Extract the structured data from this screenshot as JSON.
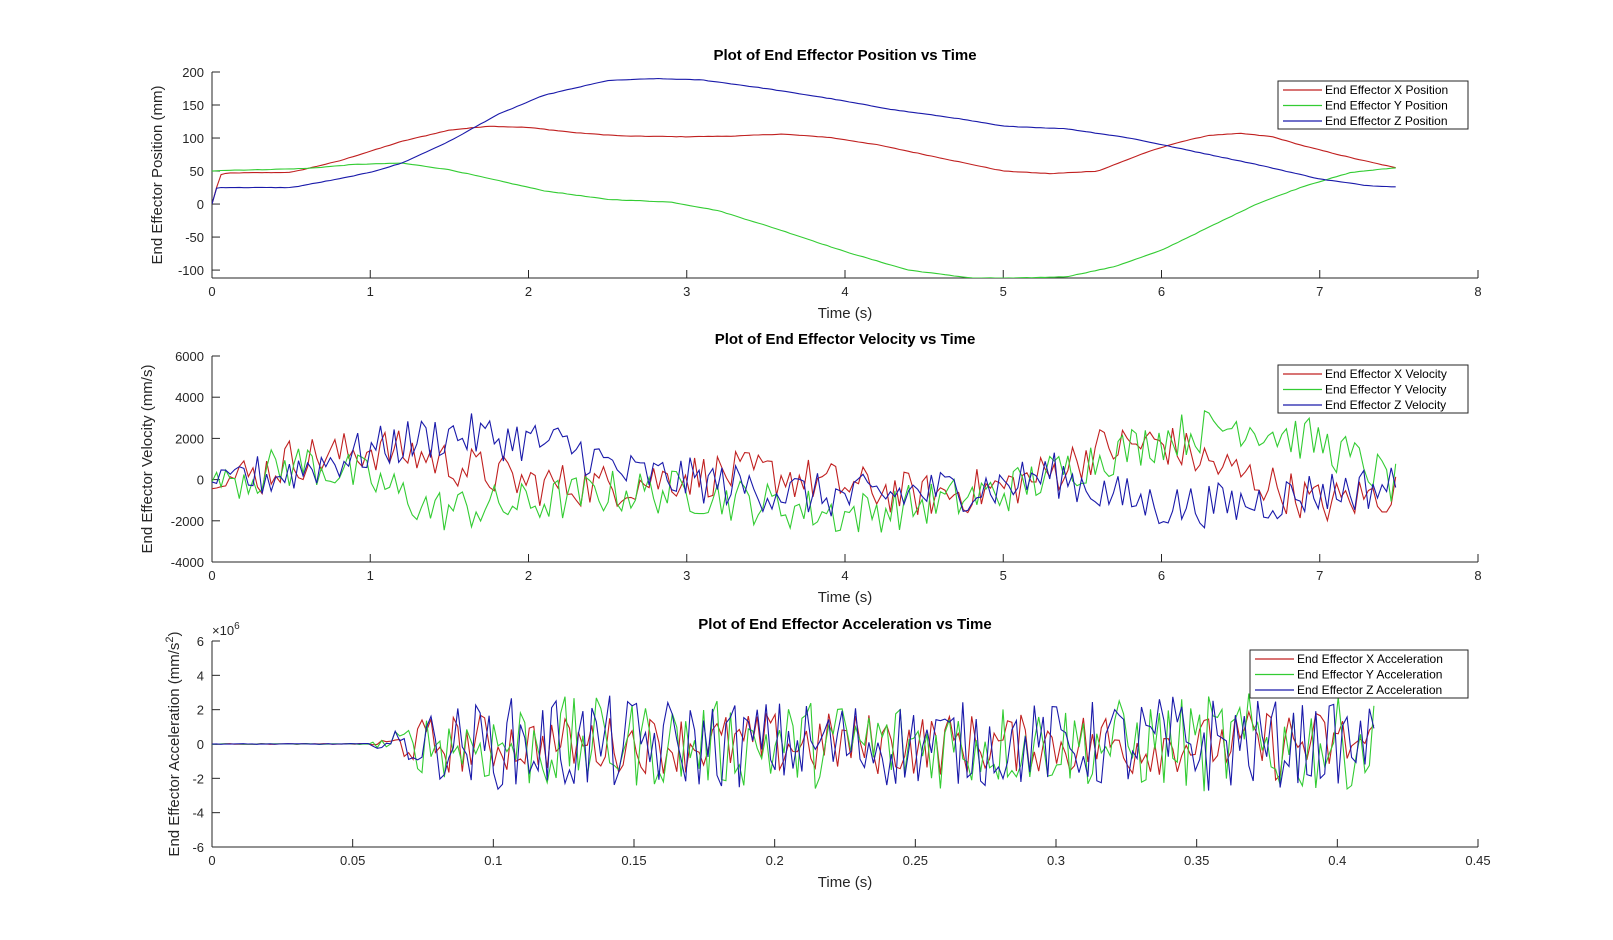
{
  "figure": {
    "background": "#ffffff"
  },
  "chart_data": [
    {
      "type": "line",
      "title": "Plot of End Effector Position vs Time",
      "xlabel": "Time (s)",
      "ylabel": "End Effector Position (mm)",
      "xlim": [
        0,
        8
      ],
      "ylim": [
        -112,
        200
      ],
      "xticks": [
        0,
        1,
        2,
        3,
        4,
        5,
        6,
        7,
        8
      ],
      "yticks": [
        -100,
        -50,
        0,
        50,
        100,
        150,
        200
      ],
      "grid": false,
      "legend_position": "top-right",
      "series": [
        {
          "name": "End Effector X Position",
          "color": "#c02020",
          "x": [
            0,
            0.05,
            0.1,
            0.5,
            0.8,
            1.0,
            1.2,
            1.5,
            1.75,
            2.0,
            2.3,
            2.6,
            3.0,
            3.3,
            3.6,
            3.9,
            4.2,
            4.5,
            4.8,
            5.0,
            5.3,
            5.6,
            5.9,
            6.1,
            6.3,
            6.5,
            6.7,
            6.9,
            7.2,
            7.48
          ],
          "y": [
            0,
            44,
            47,
            48,
            65,
            80,
            95,
            112,
            118,
            116,
            108,
            103,
            102,
            103,
            106,
            101,
            90,
            75,
            60,
            50,
            46,
            50,
            78,
            93,
            104,
            107,
            102,
            88,
            70,
            55
          ]
        },
        {
          "name": "End Effector Y Position",
          "color": "#33cc33",
          "x": [
            0,
            0.05,
            0.3,
            0.6,
            0.9,
            1.2,
            1.5,
            1.8,
            2.1,
            2.5,
            2.9,
            3.2,
            3.6,
            4.0,
            4.4,
            4.8,
            5.1,
            5.4,
            5.7,
            6.0,
            6.3,
            6.6,
            6.9,
            7.2,
            7.48
          ],
          "y": [
            50,
            51,
            52,
            54,
            60,
            62,
            52,
            36,
            20,
            7,
            3,
            -10,
            -40,
            -72,
            -100,
            -112,
            -112,
            -110,
            -95,
            -70,
            -35,
            0,
            27,
            48,
            55
          ]
        },
        {
          "name": "End Effector Z Position",
          "color": "#1a1aaa",
          "x": [
            0,
            0.03,
            0.5,
            0.8,
            1.0,
            1.2,
            1.5,
            1.8,
            2.1,
            2.5,
            2.8,
            3.1,
            3.5,
            3.9,
            4.3,
            4.7,
            5.0,
            5.4,
            5.8,
            6.2,
            6.6,
            7.0,
            7.3,
            7.48
          ],
          "y": [
            0,
            25,
            25,
            38,
            48,
            62,
            95,
            135,
            165,
            187,
            190,
            188,
            175,
            160,
            143,
            130,
            118,
            114,
            100,
            80,
            60,
            38,
            28,
            26
          ]
        }
      ]
    },
    {
      "type": "line",
      "title": "Plot of End Effector Velocity vs Time",
      "xlabel": "Time (s)",
      "ylabel": "End Effector Velocity (mm/s)",
      "xlim": [
        0,
        8
      ],
      "ylim": [
        -4000,
        6000
      ],
      "xticks": [
        0,
        1,
        2,
        3,
        4,
        5,
        6,
        7,
        8
      ],
      "yticks": [
        -4000,
        -2000,
        0,
        2000,
        4000,
        6000
      ],
      "grid": false,
      "legend_position": "top-right",
      "series": [
        {
          "name": "End Effector X Velocity",
          "color": "#c02020",
          "x": [
            0,
            0.3,
            0.5,
            0.8,
            1.0,
            1.3,
            1.6,
            2.0,
            2.5,
            3.0,
            3.5,
            4.0,
            4.5,
            5.0,
            5.3,
            5.6,
            6.0,
            6.3,
            6.6,
            7.0,
            7.48
          ],
          "y": [
            0,
            200,
            1000,
            1200,
            1500,
            1200,
            600,
            -200,
            -300,
            200,
            300,
            -300,
            -800,
            -400,
            300,
            1500,
            1800,
            800,
            0,
            -1200,
            -600
          ]
        },
        {
          "name": "End Effector Y Velocity",
          "color": "#33cc33",
          "x": [
            0,
            0.3,
            0.6,
            1.0,
            1.4,
            2.0,
            2.5,
            3.0,
            3.5,
            4.0,
            4.5,
            5.0,
            5.5,
            6.0,
            6.5,
            7.0,
            7.3,
            7.48
          ],
          "y": [
            0,
            300,
            800,
            0,
            -1500,
            -1200,
            -600,
            -600,
            -1200,
            -1700,
            -1200,
            -600,
            800,
            2000,
            2700,
            1800,
            600,
            -300
          ]
        },
        {
          "name": "End Effector Z Velocity",
          "color": "#1a1aaa",
          "x": [
            0,
            0.4,
            0.8,
            1.2,
            1.5,
            2.0,
            2.3,
            2.6,
            3.0,
            3.5,
            4.0,
            4.5,
            5.0,
            5.3,
            5.7,
            6.0,
            6.5,
            7.0,
            7.48
          ],
          "y": [
            0,
            200,
            1000,
            1800,
            2200,
            1900,
            1500,
            300,
            0,
            -500,
            -900,
            -600,
            -300,
            300,
            -800,
            -1300,
            -1200,
            -600,
            -300
          ]
        }
      ]
    },
    {
      "type": "line",
      "title": "Plot of End Effector Acceleration vs Time",
      "xlabel": "Time (s)",
      "ylabel": "End Effector Acceleration (mm/s",
      "ylabel_superscript": "2",
      "ylabel_suffix": ")",
      "exponent_label": "×10",
      "exponent_power": "6",
      "xlim": [
        0,
        0.45
      ],
      "ylim": [
        -6,
        6
      ],
      "xticks": [
        0,
        0.05,
        0.1,
        0.15,
        0.2,
        0.25,
        0.3,
        0.35,
        0.4,
        0.45
      ],
      "yticks": [
        -6,
        -4,
        -2,
        0,
        2,
        4,
        6
      ],
      "grid": false,
      "legend_position": "top-right",
      "series": [
        {
          "name": "End Effector X Acceleration",
          "color": "#c02020",
          "x": [
            0,
            0.04,
            0.06,
            0.09,
            0.12,
            0.15,
            0.2,
            0.25,
            0.3,
            0.32,
            0.35,
            0.38,
            0.413
          ],
          "y": [
            0,
            0,
            0.2,
            0.6,
            0.4,
            0.5,
            0.6,
            0.6,
            0.5,
            0.8,
            0.4,
            0.8,
            0.5
          ]
        },
        {
          "name": "End Effector Y Acceleration",
          "color": "#33cc33",
          "x": [
            0,
            0.04,
            0.06,
            0.09,
            0.12,
            0.15,
            0.2,
            0.25,
            0.3,
            0.35,
            0.38,
            0.413
          ],
          "y": [
            0,
            -0.1,
            0.3,
            0.8,
            1.2,
            1.0,
            1.0,
            1.1,
            0.9,
            1.2,
            1.3,
            1.0
          ]
        },
        {
          "name": "End Effector Z Acceleration",
          "color": "#1a1aaa",
          "x": [
            0,
            0.04,
            0.06,
            0.09,
            0.12,
            0.15,
            0.2,
            0.25,
            0.3,
            0.35,
            0.38,
            0.413
          ],
          "y": [
            0,
            0.1,
            0.3,
            0.9,
            1.3,
            1.1,
            1.0,
            1.0,
            0.9,
            1.3,
            1.0,
            0.8
          ]
        }
      ]
    }
  ]
}
